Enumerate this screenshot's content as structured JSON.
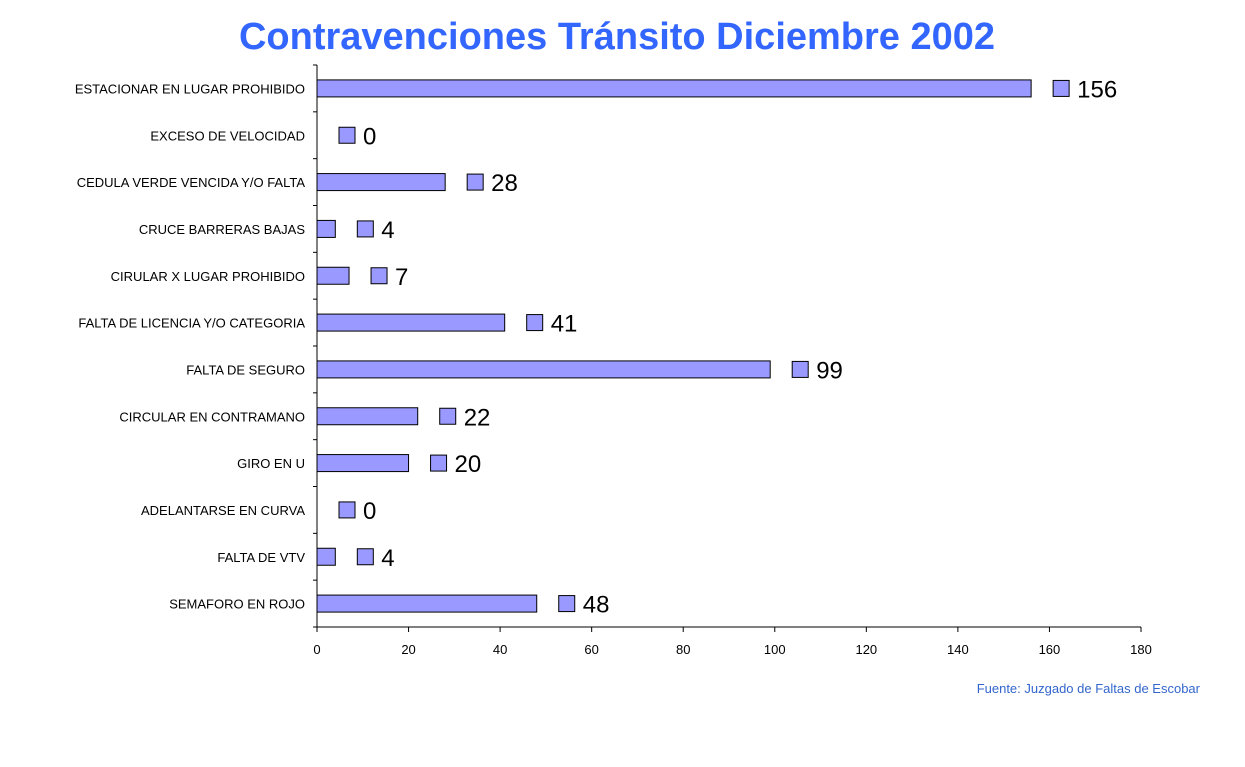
{
  "chart_data": {
    "type": "bar",
    "orientation": "horizontal",
    "title": "Contravenciones Tránsito Diciembre 2002",
    "categories": [
      "ESTACIONAR EN LUGAR PROHIBIDO",
      "EXCESO DE VELOCIDAD",
      "CEDULA VERDE VENCIDA Y/O FALTA",
      "CRUCE BARRERAS BAJAS",
      "CIRULAR X LUGAR PROHIBIDO",
      "FALTA DE LICENCIA Y/O CATEGORIA",
      "FALTA DE SEGURO",
      "CIRCULAR EN CONTRAMANO",
      "GIRO EN U",
      "ADELANTARSE EN CURVA",
      "FALTA DE VTV",
      "SEMAFORO EN ROJO"
    ],
    "values": [
      156,
      0,
      28,
      4,
      7,
      41,
      99,
      22,
      20,
      0,
      4,
      48
    ],
    "xlim": [
      0,
      180
    ],
    "xticks": [
      0,
      20,
      40,
      60,
      80,
      100,
      120,
      140,
      160,
      180
    ],
    "grid": false,
    "legend": "none",
    "bar_color": "#9999ff",
    "bar_stroke": "#000000"
  },
  "footer": {
    "source": "Fuente: Juzgado de Faltas de Escobar"
  },
  "colors": {
    "title": "#3366ff",
    "source": "#3366cc"
  }
}
